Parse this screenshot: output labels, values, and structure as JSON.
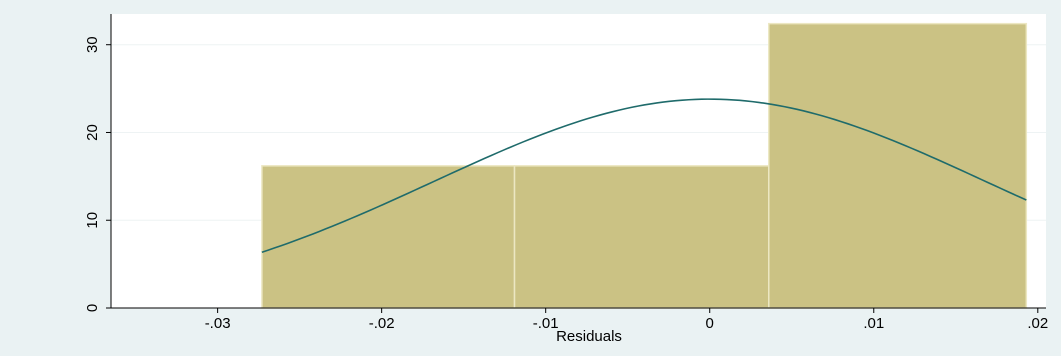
{
  "chart_data": {
    "type": "bar",
    "subtype": "histogram-with-normal-density",
    "title": "",
    "xlabel": "Residuals",
    "ylabel": "",
    "xlim": [
      -0.0365,
      0.0205
    ],
    "ylim": [
      0,
      33.5
    ],
    "x_ticks": [
      -0.03,
      -0.02,
      -0.01,
      0,
      0.01,
      0.02
    ],
    "x_tick_labels": [
      "-.03",
      "-.02",
      "-.01",
      "0",
      ".01",
      ".02"
    ],
    "y_ticks": [
      0,
      10,
      20,
      30
    ],
    "y_tick_labels": [
      "0",
      "10",
      "20",
      "30"
    ],
    "bins": [
      {
        "start": -0.0273,
        "end": -0.0119,
        "value": 16.2
      },
      {
        "start": -0.0119,
        "end": 0.0036,
        "value": 16.2
      },
      {
        "start": 0.0036,
        "end": 0.0193,
        "value": 32.4
      }
    ],
    "density_curve": {
      "mean": 0.0,
      "sd": 0.0168,
      "peak": 23.8,
      "x_range": [
        -0.0273,
        0.0193
      ]
    },
    "grid": true,
    "legend": "none",
    "colors": {
      "background": "#eaf2f3",
      "plot_background": "#ffffff",
      "bar_fill": "#cbc284",
      "bar_edge": "#ece7c2",
      "curve": "#1f6b6b",
      "axis": "#000000",
      "grid": "#eef3f4"
    }
  }
}
